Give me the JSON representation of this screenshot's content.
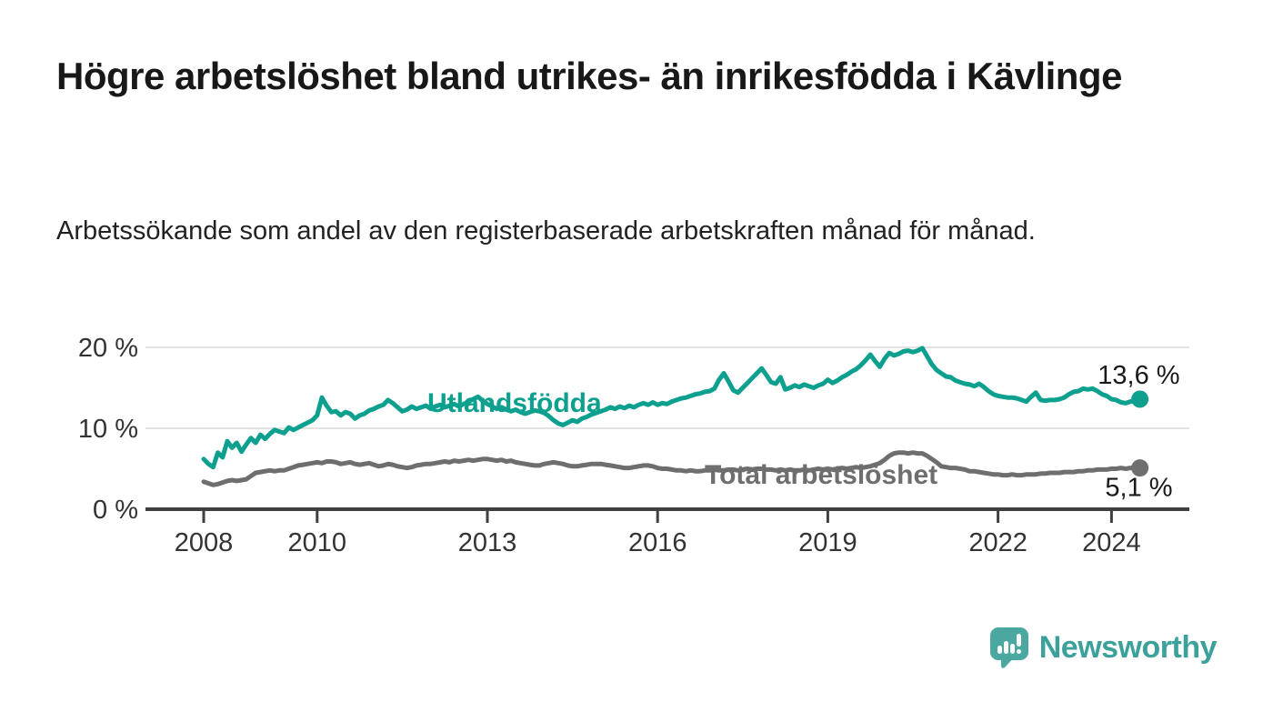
{
  "header": {
    "title": "Högre arbetslöshet bland utrikes- än inrikesfödda i Kävlinge",
    "subtitle": "Arbetssökande som andel av den registerbaserade arbetskraften månad för månad."
  },
  "colors": {
    "accent": "#0ea08f",
    "gray": "#6e6e6e",
    "grid": "#e2e2e2",
    "axis": "#404040",
    "axis_text": "#333333",
    "value_label": "#1a1a1a",
    "logo": "#3ba19a",
    "logo_icon": "#4ba8a1"
  },
  "chart_data": {
    "type": "line",
    "x_unit": "month",
    "x_start": "2008-01",
    "x_end": "2024-07",
    "x_ticks": [
      2008,
      2010,
      2013,
      2016,
      2019,
      2022,
      2024
    ],
    "y_ticks": [
      {
        "value": 0,
        "label": "0 %"
      },
      {
        "value": 10,
        "label": "10 %"
      },
      {
        "value": 20,
        "label": "20 %"
      }
    ],
    "ylim": [
      0,
      21
    ],
    "unit": "%",
    "grid": "horizontal-only",
    "legend_position": "inline-on-lines",
    "series": [
      {
        "name": "Utlandsfödda",
        "color": "#0ea08f",
        "end_label": "13,6 %",
        "end_value": 13.6,
        "values": [
          6.2,
          5.6,
          5.2,
          7.0,
          6.4,
          8.4,
          7.6,
          8.2,
          7.1,
          8.0,
          8.8,
          8.2,
          9.2,
          8.7,
          9.3,
          9.8,
          9.6,
          9.4,
          10.1,
          9.8,
          10.1,
          10.4,
          10.7,
          11.0,
          11.6,
          13.8,
          12.8,
          12.0,
          12.1,
          11.6,
          12.0,
          11.8,
          11.2,
          11.6,
          11.8,
          12.2,
          12.4,
          12.7,
          12.9,
          13.5,
          13.1,
          12.6,
          12.1,
          12.3,
          12.7,
          12.4,
          12.6,
          12.8,
          12.4,
          12.7,
          12.9,
          12.6,
          12.8,
          13.0,
          12.7,
          13.0,
          13.3,
          13.6,
          13.9,
          13.4,
          13.0,
          12.7,
          12.4,
          12.6,
          12.3,
          12.1,
          12.3,
          12.0,
          11.8,
          12.0,
          12.2,
          12.1,
          11.9,
          11.5,
          11.0,
          10.6,
          10.4,
          10.7,
          11.0,
          10.8,
          11.2,
          11.4,
          11.7,
          11.9,
          12.1,
          12.3,
          12.6,
          12.4,
          12.7,
          12.5,
          12.8,
          12.6,
          12.9,
          13.1,
          12.9,
          13.2,
          12.9,
          13.1,
          13.0,
          13.3,
          13.5,
          13.7,
          13.8,
          14.0,
          14.2,
          14.3,
          14.5,
          14.6,
          14.9,
          16.0,
          16.8,
          15.8,
          14.7,
          14.4,
          15.0,
          15.6,
          16.2,
          16.8,
          17.4,
          16.6,
          15.7,
          15.5,
          16.3,
          14.8,
          15.0,
          15.3,
          15.1,
          15.4,
          15.2,
          15.0,
          15.3,
          15.5,
          16.0,
          15.6,
          15.9,
          16.3,
          16.6,
          17.0,
          17.3,
          17.8,
          18.4,
          19.1,
          18.3,
          17.6,
          18.6,
          19.3,
          19.0,
          19.2,
          19.5,
          19.6,
          19.4,
          19.6,
          19.9,
          18.9,
          17.9,
          17.2,
          16.8,
          16.4,
          16.3,
          15.9,
          15.7,
          15.5,
          15.4,
          15.2,
          15.5,
          15.1,
          14.6,
          14.2,
          14.0,
          13.9,
          13.8,
          13.8,
          13.7,
          13.5,
          13.3,
          13.9,
          14.4,
          13.5,
          13.4,
          13.5,
          13.5,
          13.6,
          13.8,
          14.2,
          14.5,
          14.6,
          14.9,
          14.8,
          14.9,
          14.6,
          14.2,
          14.0,
          13.6,
          13.5,
          13.2,
          13.1,
          13.3,
          13.4,
          13.6
        ]
      },
      {
        "name": "Total arbetslöshet",
        "color": "#6e6e6e",
        "end_label": "5,1 %",
        "end_value": 5.1,
        "values": [
          3.4,
          3.2,
          3.0,
          3.1,
          3.3,
          3.5,
          3.6,
          3.5,
          3.6,
          3.7,
          4.1,
          4.5,
          4.6,
          4.7,
          4.8,
          4.7,
          4.8,
          4.8,
          5.0,
          5.2,
          5.4,
          5.5,
          5.6,
          5.7,
          5.8,
          5.7,
          5.9,
          5.9,
          5.8,
          5.6,
          5.7,
          5.8,
          5.6,
          5.5,
          5.6,
          5.7,
          5.5,
          5.3,
          5.4,
          5.6,
          5.5,
          5.3,
          5.2,
          5.1,
          5.2,
          5.4,
          5.5,
          5.6,
          5.6,
          5.7,
          5.8,
          5.9,
          5.8,
          6.0,
          5.9,
          6.0,
          6.1,
          6.0,
          6.1,
          6.2,
          6.2,
          6.1,
          6.0,
          6.1,
          5.9,
          6.0,
          5.8,
          5.7,
          5.6,
          5.5,
          5.4,
          5.4,
          5.6,
          5.7,
          5.8,
          5.7,
          5.6,
          5.4,
          5.3,
          5.3,
          5.4,
          5.5,
          5.6,
          5.6,
          5.6,
          5.5,
          5.4,
          5.3,
          5.2,
          5.1,
          5.1,
          5.2,
          5.3,
          5.4,
          5.4,
          5.3,
          5.1,
          5.0,
          5.0,
          4.9,
          4.8,
          4.8,
          4.7,
          4.8,
          4.7,
          4.7,
          4.8,
          4.8,
          4.9,
          4.8,
          4.8,
          4.9,
          4.9,
          4.8,
          4.9,
          5.0,
          4.9,
          5.0,
          5.0,
          4.9,
          4.9,
          4.8,
          4.9,
          4.8,
          4.9,
          4.8,
          4.8,
          4.9,
          4.8,
          4.9,
          5.0,
          4.9,
          5.0,
          4.9,
          5.0,
          5.1,
          5.0,
          5.1,
          5.2,
          5.1,
          5.2,
          5.3,
          5.5,
          5.7,
          6.1,
          6.6,
          6.9,
          7.0,
          7.0,
          6.9,
          7.0,
          6.9,
          6.9,
          6.6,
          6.2,
          5.8,
          5.3,
          5.2,
          5.1,
          5.1,
          5.0,
          4.9,
          4.7,
          4.7,
          4.6,
          4.5,
          4.4,
          4.3,
          4.3,
          4.2,
          4.2,
          4.3,
          4.2,
          4.2,
          4.3,
          4.3,
          4.3,
          4.4,
          4.4,
          4.5,
          4.5,
          4.5,
          4.6,
          4.6,
          4.6,
          4.7,
          4.7,
          4.8,
          4.8,
          4.9,
          4.9,
          4.9,
          5.0,
          5.0,
          5.1,
          5.0,
          5.1,
          5.1,
          5.1
        ]
      }
    ]
  },
  "footer": {
    "brand": "Newsworthy"
  }
}
